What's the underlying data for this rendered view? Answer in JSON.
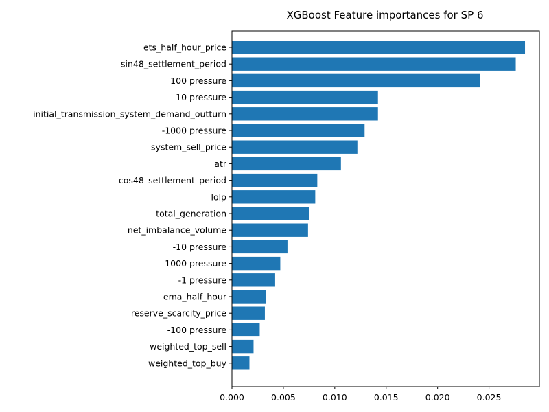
{
  "chart_data": {
    "type": "bar",
    "orientation": "horizontal",
    "title": "XGBoost Feature importances for SP 6",
    "xlabel": "",
    "ylabel": "",
    "xlim": [
      0,
      0.0299
    ],
    "xticks": [
      "0.000",
      "0.005",
      "0.010",
      "0.015",
      "0.020",
      "0.025"
    ],
    "xtick_values": [
      0,
      0.005,
      0.01,
      0.015,
      0.02,
      0.025
    ],
    "bar_color": "#1f77b4",
    "grid": false,
    "categories": [
      "ets_half_hour_price",
      "sin48_settlement_period",
      "100 pressure",
      "10 pressure",
      "initial_transmission_system_demand_outturn",
      "-1000 pressure",
      "system_sell_price",
      "atr",
      "cos48_settlement_period",
      "lolp",
      "total_generation",
      "net_imbalance_volume",
      "-10 pressure",
      "1000 pressure",
      "-1 pressure",
      "ema_half_hour",
      "reserve_scarcity_price",
      "-100 pressure",
      "weighted_top_sell",
      "weighted_top_buy"
    ],
    "values": [
      0.0285,
      0.0276,
      0.0241,
      0.0142,
      0.0142,
      0.0129,
      0.0122,
      0.0106,
      0.0083,
      0.0081,
      0.0075,
      0.0074,
      0.0054,
      0.0047,
      0.0042,
      0.0033,
      0.0032,
      0.0027,
      0.0021,
      0.0017
    ]
  }
}
